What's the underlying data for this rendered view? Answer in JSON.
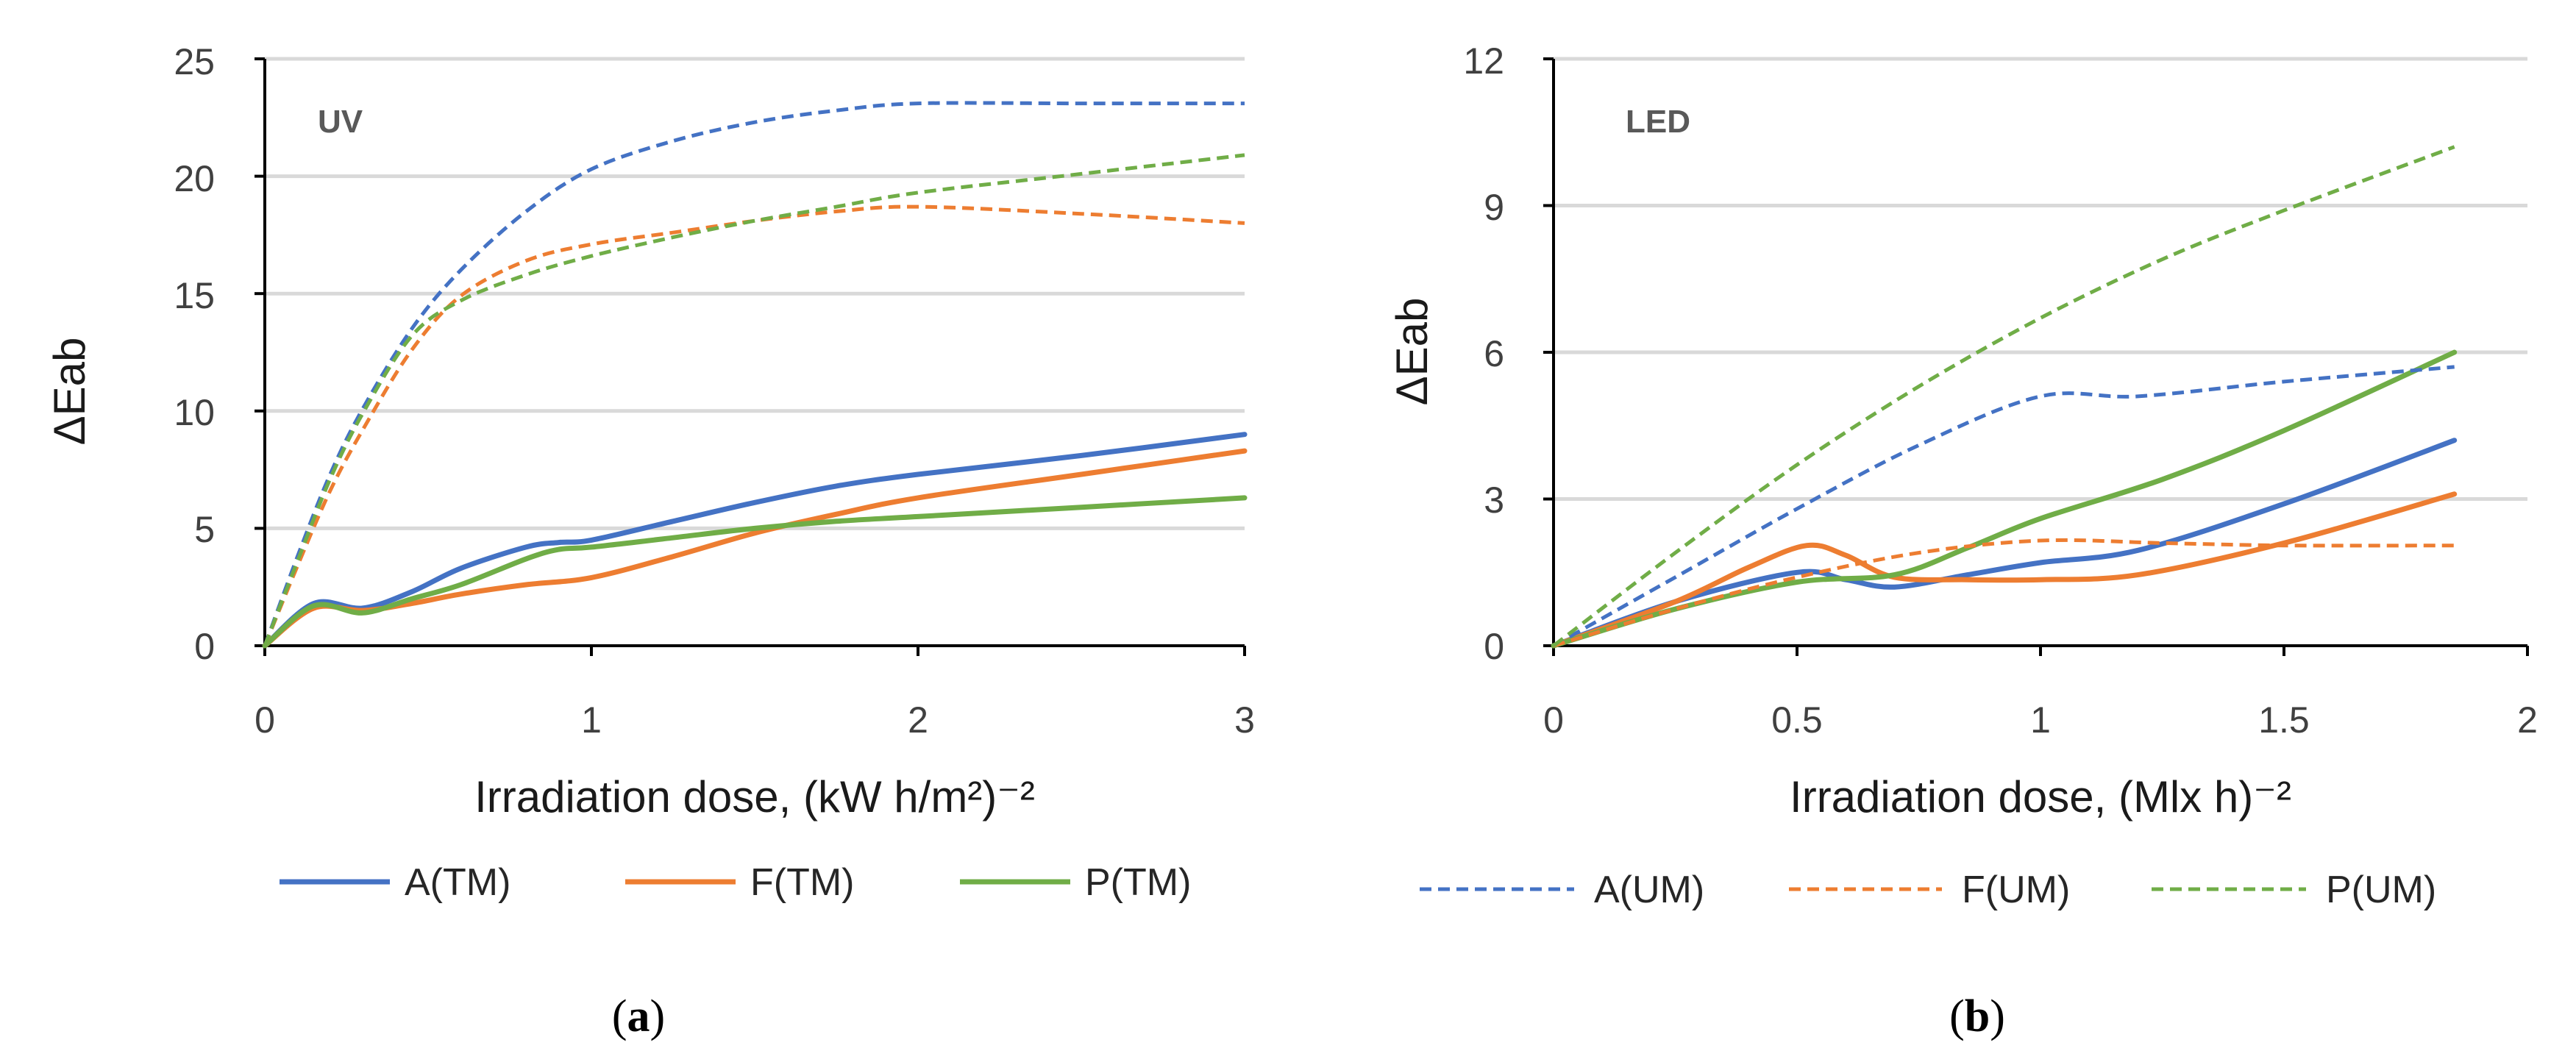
{
  "colors": {
    "A": "#4472c4",
    "F": "#ed7d31",
    "P": "#70ad47",
    "grid": "#d9d9d9",
    "axis": "#000000"
  },
  "chart_data": [
    {
      "type": "line",
      "panel_label": "UV",
      "caption_letter": "a",
      "xlabel": "Irradiation dose, (kW  h/m²)⁻²",
      "ylabel": "ΔEab",
      "xlim": [
        0,
        3
      ],
      "ylim": [
        0,
        25
      ],
      "x_ticks": [
        0,
        1,
        2,
        3
      ],
      "x_tick_labels": [
        "0",
        "1",
        "2",
        "3"
      ],
      "y_ticks": [
        0,
        5,
        10,
        15,
        20,
        25
      ],
      "y_tick_labels": [
        "0",
        "5",
        "10",
        "15",
        "20",
        "25"
      ],
      "grid": "horizontal",
      "legend": [
        {
          "label": "A(TM)",
          "color": "#4472c4",
          "dashed": false
        },
        {
          "label": "F(TM)",
          "color": "#ed7d31",
          "dashed": false
        },
        {
          "label": "P(TM)",
          "color": "#70ad47",
          "dashed": false
        }
      ],
      "series": [
        {
          "name": "A(TM)",
          "color": "#4472c4",
          "dashed": false,
          "x": [
            0,
            0.15,
            0.3,
            0.45,
            0.6,
            0.8,
            0.9,
            1.0,
            1.25,
            1.5,
            1.75,
            2.0,
            2.5,
            3.0
          ],
          "y": [
            0,
            1.8,
            1.6,
            2.3,
            3.3,
            4.2,
            4.4,
            4.5,
            5.3,
            6.1,
            6.8,
            7.3,
            8.1,
            9.0
          ]
        },
        {
          "name": "F(TM)",
          "color": "#ed7d31",
          "dashed": false,
          "x": [
            0,
            0.15,
            0.3,
            0.45,
            0.6,
            0.8,
            1.0,
            1.25,
            1.5,
            1.75,
            2.0,
            2.5,
            3.0
          ],
          "y": [
            0,
            1.6,
            1.5,
            1.8,
            2.2,
            2.6,
            2.9,
            3.8,
            4.8,
            5.6,
            6.3,
            7.3,
            8.3
          ]
        },
        {
          "name": "P(TM)",
          "color": "#70ad47",
          "dashed": false,
          "x": [
            0,
            0.15,
            0.3,
            0.45,
            0.6,
            0.8,
            0.9,
            1.0,
            1.25,
            1.5,
            1.75,
            2.0,
            2.5,
            3.0
          ],
          "y": [
            0,
            1.7,
            1.4,
            2.0,
            2.6,
            3.7,
            4.1,
            4.2,
            4.6,
            5.0,
            5.3,
            5.5,
            5.9,
            6.3
          ]
        },
        {
          "name": "A(UM)",
          "color": "#4472c4",
          "dashed": true,
          "x": [
            0,
            0.1,
            0.2,
            0.3,
            0.45,
            0.6,
            0.8,
            1.0,
            1.25,
            1.5,
            1.75,
            2.0,
            2.5,
            3.0
          ],
          "y": [
            0,
            3.8,
            7.3,
            10.1,
            13.5,
            16.0,
            18.5,
            20.3,
            21.5,
            22.3,
            22.8,
            23.1,
            23.1,
            23.1
          ]
        },
        {
          "name": "F(UM)",
          "color": "#ed7d31",
          "dashed": true,
          "x": [
            0,
            0.1,
            0.2,
            0.3,
            0.45,
            0.6,
            0.8,
            1.0,
            1.25,
            1.5,
            1.75,
            2.0,
            2.5,
            3.0
          ],
          "y": [
            0,
            3.4,
            6.6,
            9.2,
            12.6,
            14.9,
            16.4,
            17.1,
            17.6,
            18.1,
            18.5,
            18.7,
            18.4,
            18.0
          ]
        },
        {
          "name": "P(UM)",
          "color": "#70ad47",
          "dashed": true,
          "x": [
            0,
            0.1,
            0.2,
            0.3,
            0.45,
            0.6,
            0.8,
            1.0,
            1.25,
            1.5,
            1.75,
            2.0,
            2.5,
            3.0
          ],
          "y": [
            0,
            3.6,
            7.1,
            9.9,
            13.2,
            14.7,
            15.8,
            16.6,
            17.4,
            18.1,
            18.7,
            19.3,
            20.1,
            20.9
          ]
        }
      ]
    },
    {
      "type": "line",
      "panel_label": "LED",
      "caption_letter": "b",
      "xlabel": "Irradiation dose, (Mlx  h)⁻²",
      "ylabel": "ΔEab",
      "xlim": [
        0,
        2
      ],
      "ylim": [
        0,
        12
      ],
      "x_ticks": [
        0,
        0.5,
        1,
        1.5,
        2
      ],
      "x_tick_labels": [
        "0",
        "0.5",
        "1",
        "1.5",
        "2"
      ],
      "y_ticks": [
        0,
        3,
        6,
        9,
        12
      ],
      "y_tick_labels": [
        "0",
        "3",
        "6",
        "9",
        "12"
      ],
      "grid": "horizontal",
      "legend": [
        {
          "label": "A(UM)",
          "color": "#4472c4",
          "dashed": true
        },
        {
          "label": "F(UM)",
          "color": "#ed7d31",
          "dashed": true
        },
        {
          "label": "P(UM)",
          "color": "#70ad47",
          "dashed": true
        }
      ],
      "series": [
        {
          "name": "A(TM)",
          "color": "#4472c4",
          "dashed": false,
          "x": [
            0,
            0.25,
            0.5,
            0.6,
            0.7,
            0.85,
            1.0,
            1.2,
            1.5,
            1.85
          ],
          "y": [
            0,
            0.9,
            1.5,
            1.35,
            1.2,
            1.45,
            1.7,
            1.95,
            2.9,
            4.2
          ]
        },
        {
          "name": "F(TM)",
          "color": "#ed7d31",
          "dashed": false,
          "x": [
            0,
            0.25,
            0.4,
            0.52,
            0.6,
            0.7,
            0.85,
            1.0,
            1.2,
            1.5,
            1.85
          ],
          "y": [
            0,
            0.9,
            1.6,
            2.05,
            1.85,
            1.4,
            1.35,
            1.35,
            1.45,
            2.1,
            3.1
          ]
        },
        {
          "name": "P(TM)",
          "color": "#70ad47",
          "dashed": false,
          "x": [
            0,
            0.25,
            0.5,
            0.7,
            0.85,
            1.0,
            1.25,
            1.5,
            1.85
          ],
          "y": [
            0,
            0.75,
            1.3,
            1.45,
            2.0,
            2.6,
            3.4,
            4.4,
            6.0
          ]
        },
        {
          "name": "A(UM)",
          "color": "#4472c4",
          "dashed": true,
          "x": [
            0,
            0.25,
            0.5,
            0.75,
            1.0,
            1.2,
            1.5,
            1.85
          ],
          "y": [
            0,
            1.4,
            2.8,
            4.1,
            5.1,
            5.1,
            5.4,
            5.7
          ]
        },
        {
          "name": "F(UM)",
          "color": "#ed7d31",
          "dashed": true,
          "x": [
            0,
            0.25,
            0.5,
            0.75,
            1.0,
            1.25,
            1.5,
            1.85
          ],
          "y": [
            0,
            0.75,
            1.4,
            1.9,
            2.15,
            2.1,
            2.05,
            2.05
          ]
        },
        {
          "name": "P(UM)",
          "color": "#70ad47",
          "dashed": true,
          "x": [
            0,
            0.25,
            0.5,
            0.75,
            1.0,
            1.25,
            1.5,
            1.85
          ],
          "y": [
            0,
            1.9,
            3.7,
            5.3,
            6.7,
            7.9,
            8.9,
            10.2
          ]
        }
      ]
    }
  ]
}
